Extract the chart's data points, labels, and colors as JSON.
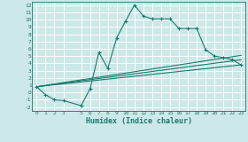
{
  "xlabel": "Humidex (Indice chaleur)",
  "xlim": [
    -0.5,
    23.5
  ],
  "ylim": [
    -2.5,
    12.5
  ],
  "xticks": [
    0,
    1,
    2,
    3,
    5,
    6,
    7,
    8,
    9,
    10,
    11,
    12,
    13,
    14,
    15,
    16,
    17,
    18,
    19,
    20,
    21,
    22,
    23
  ],
  "yticks": [
    -2,
    -1,
    0,
    1,
    2,
    3,
    4,
    5,
    6,
    7,
    8,
    9,
    10,
    11,
    12
  ],
  "bg_color": "#cce8e8",
  "grid_color": "#ffffff",
  "line_color": "#1a7a6e",
  "main_line": {
    "x": [
      0,
      1,
      2,
      3,
      5,
      6,
      7,
      8,
      9,
      10,
      11,
      12,
      13,
      14,
      15,
      16,
      17,
      18,
      19,
      20,
      21,
      22,
      23
    ],
    "y": [
      0.8,
      -0.3,
      -1.0,
      -1.1,
      -1.8,
      0.5,
      5.5,
      3.3,
      7.5,
      9.8,
      12.0,
      10.5,
      10.1,
      10.1,
      10.1,
      8.8,
      8.8,
      8.8,
      5.9,
      5.0,
      4.8,
      4.5,
      3.8
    ]
  },
  "reg_lines": [
    {
      "x": [
        0,
        23
      ],
      "y": [
        0.8,
        3.8
      ]
    },
    {
      "x": [
        0,
        23
      ],
      "y": [
        0.8,
        4.5
      ]
    },
    {
      "x": [
        0,
        23
      ],
      "y": [
        0.8,
        5.1
      ]
    }
  ]
}
